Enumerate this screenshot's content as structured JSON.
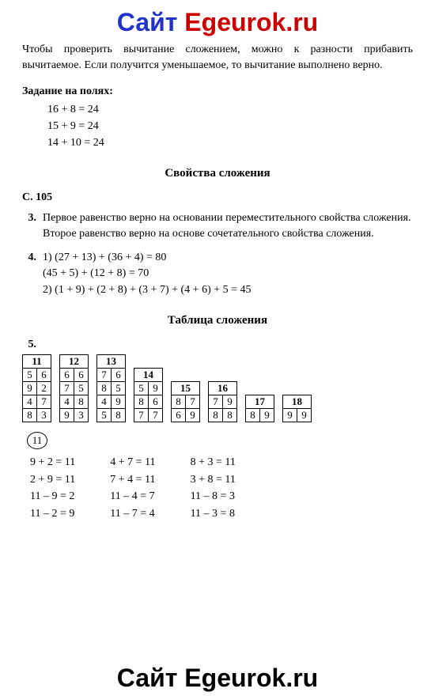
{
  "watermark": {
    "part1": "Сайт ",
    "part2": "Egeurok.ru"
  },
  "intro": "Чтобы проверить вычитание сложением, можно к разности прибавить вычитаемое. Если получится уменьшаемое, то вычитание выполнено верно.",
  "margins": {
    "title": "Задание на полях:",
    "lines": [
      "16 + 8 = 24",
      "15 + 9 = 24",
      "14 + 10 = 24"
    ]
  },
  "section1_title": "Свойства сложения",
  "page_ref": "С. 105",
  "q3": {
    "num": "3.",
    "text": "Первое равенство верно на основании переместительного свойства сложения.\nВторое равенство верно на основе сочетательного свойства сложения."
  },
  "q4": {
    "num": "4.",
    "lines": [
      "1) (27 + 13) + (36 + 4) = 80",
      "(45 + 5) + (12 + 8) = 70",
      "2) (1 + 9) + (2 + 8) + (3 + 7) + (4 + 6) + 5 = 45"
    ]
  },
  "section2_title": "Таблица сложения",
  "q5": {
    "num": "5."
  },
  "tables": [
    {
      "header": "11",
      "rows": [
        [
          "5",
          "6"
        ],
        [
          "9",
          "2"
        ],
        [
          "4",
          "7"
        ],
        [
          "8",
          "3"
        ]
      ]
    },
    {
      "header": "12",
      "rows": [
        [
          "6",
          "6"
        ],
        [
          "7",
          "5"
        ],
        [
          "4",
          "8"
        ],
        [
          "9",
          "3"
        ]
      ]
    },
    {
      "header": "13",
      "rows": [
        [
          "7",
          "6"
        ],
        [
          "8",
          "5"
        ],
        [
          "4",
          "9"
        ],
        [
          "5",
          "8"
        ]
      ]
    },
    {
      "header": "14",
      "rows": [
        [
          "5",
          "9"
        ],
        [
          "8",
          "6"
        ],
        [
          "7",
          "7"
        ]
      ]
    },
    {
      "header": "15",
      "rows": [
        [
          "8",
          "7"
        ],
        [
          "6",
          "9"
        ]
      ]
    },
    {
      "header": "16",
      "rows": [
        [
          "7",
          "9"
        ],
        [
          "8",
          "8"
        ]
      ]
    },
    {
      "header": "17",
      "rows": [
        [
          "8",
          "9"
        ]
      ]
    },
    {
      "header": "18",
      "rows": [
        [
          "9",
          "9"
        ]
      ]
    }
  ],
  "circled": "11",
  "eq_columns": [
    [
      "9 + 2 = 11",
      "2 + 9 = 11",
      "11 – 9 = 2",
      "11 – 2 = 9"
    ],
    [
      "4 + 7 = 11",
      "7 + 4 = 11",
      "11 – 4 = 7",
      "11 – 7 = 4"
    ],
    [
      "8 + 3 = 11",
      "3 + 8 = 11",
      "11 – 8 = 3",
      "11 – 3 = 8"
    ]
  ]
}
